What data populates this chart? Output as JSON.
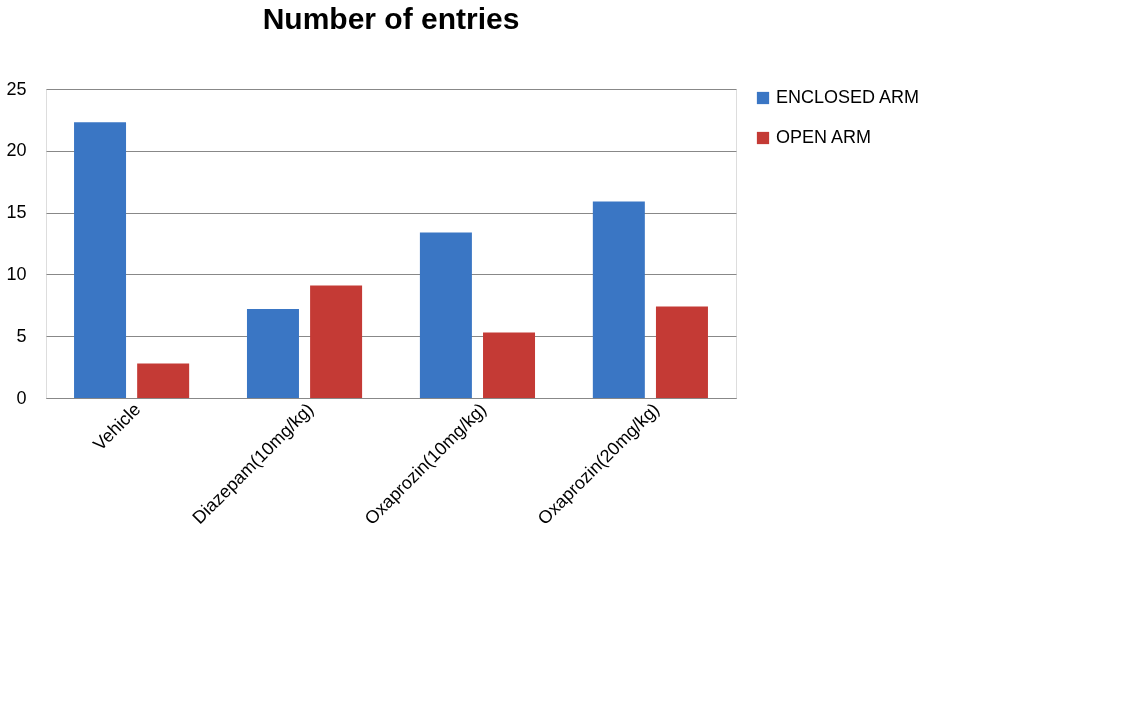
{
  "chart_data": {
    "type": "bar",
    "title": "Number of entries",
    "categories": [
      "Vehicle",
      "Diazepam(10mg/kg)",
      "Oxaprozin(10mg/kg)",
      "Oxaprozin(20mg/kg)"
    ],
    "series": [
      {
        "name": "ENCLOSED ARM",
        "color": "#3a76c4",
        "values": [
          22.3,
          7.2,
          13.4,
          15.9
        ]
      },
      {
        "name": "OPEN ARM",
        "color": "#c43a35",
        "values": [
          2.8,
          9.1,
          5.3,
          7.4
        ]
      }
    ],
    "ylim": [
      0,
      25
    ],
    "yticks": [
      0,
      5,
      10,
      15,
      20,
      25
    ],
    "grid": "y",
    "legend": "right"
  }
}
